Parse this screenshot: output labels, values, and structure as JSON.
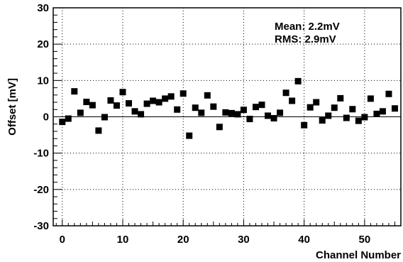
{
  "chart_data": {
    "type": "scatter",
    "xlabel": "Channel Number",
    "ylabel": "Offset [mV]",
    "xlim": [
      -1.5,
      56
    ],
    "ylim": [
      -30,
      30
    ],
    "grid": true,
    "x_ticks": [
      0,
      10,
      20,
      30,
      40,
      50
    ],
    "y_ticks": [
      -30,
      -20,
      -10,
      0,
      10,
      20,
      30
    ],
    "zero_line": 0,
    "stats": {
      "mean": "Mean: 2.2mV",
      "rms": "RMS: 2.9mV"
    },
    "series": [
      {
        "x": [
          0,
          1,
          2,
          3,
          4,
          5,
          6,
          7,
          8,
          9,
          10,
          11,
          12,
          13,
          14,
          15,
          16,
          17,
          18,
          19,
          20,
          21,
          22,
          23,
          24,
          25,
          26,
          27,
          28,
          29,
          30,
          31,
          32,
          33,
          34,
          35,
          36,
          37,
          38,
          39,
          40,
          41,
          42,
          43,
          44,
          45,
          46,
          47,
          48,
          49,
          50,
          51,
          52,
          53,
          54,
          55
        ],
        "y": [
          -1.4,
          -0.5,
          7.0,
          1.1,
          4.1,
          3.2,
          -3.8,
          -0.1,
          4.5,
          3.1,
          6.8,
          3.7,
          1.5,
          0.7,
          3.6,
          4.4,
          4.0,
          5.0,
          5.6,
          2.0,
          6.4,
          -5.2,
          2.5,
          1.1,
          5.9,
          2.8,
          -2.8,
          1.2,
          1.0,
          0.7,
          1.9,
          -0.6,
          2.7,
          3.3,
          0.3,
          -0.4,
          1.1,
          6.6,
          4.4,
          9.8,
          -2.3,
          2.6,
          4.0,
          -1.0,
          0.3,
          2.5,
          5.1,
          -0.3,
          2.1,
          -1.1,
          -0.1,
          5.0,
          0.8,
          1.5,
          6.3,
          2.3
        ]
      }
    ]
  }
}
